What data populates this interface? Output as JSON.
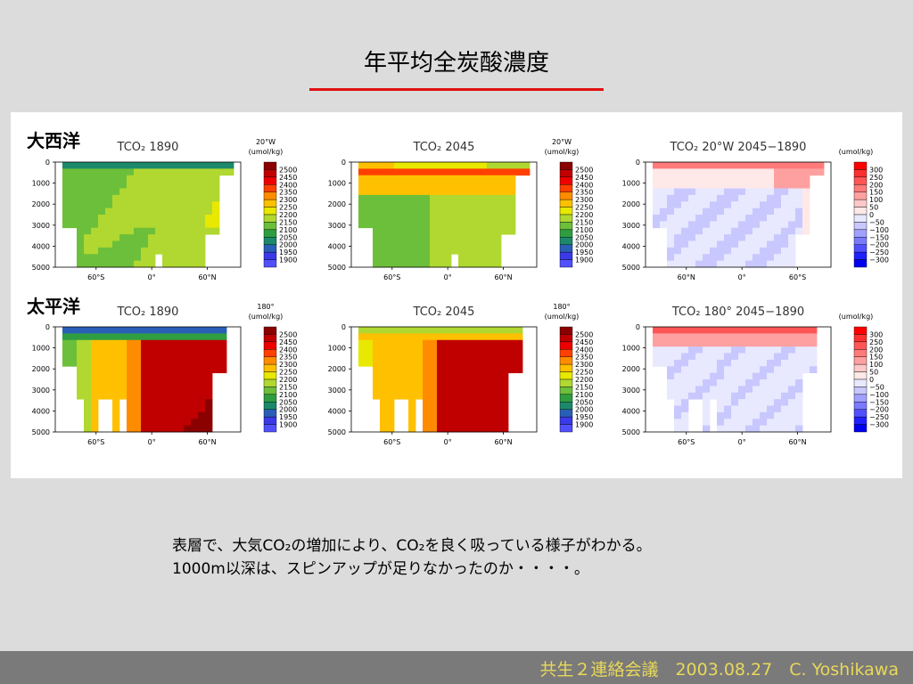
{
  "slide": {
    "title": "年平均全炭酸濃度",
    "caption_line1": "表層で、大気CO₂の増加により、CO₂を良く吸っている様子がわかる。",
    "caption_line2": "1000m以深は、スピンアップが足りなかったのか・・・・。",
    "footer": "共生２連絡会議　2003.08.27　C. Yoshikawa"
  },
  "sections": [
    {
      "label": "大西洋"
    },
    {
      "label": "太平洋"
    }
  ],
  "plots": [
    {
      "title": "TCO₂ 1890",
      "cb_title": "20°W",
      "cb_unit": "(umol/kg)",
      "xticks": [
        "60°S",
        "0°",
        "60°N"
      ],
      "scale": "abs",
      "kind": "atl1890"
    },
    {
      "title": "TCO₂ 2045",
      "cb_title": "20°W",
      "cb_unit": "(umol/kg)",
      "xticks": [
        "60°S",
        "0°",
        "60°N"
      ],
      "scale": "abs",
      "kind": "atl2045"
    },
    {
      "title": "TCO₂ 20°W 2045−1890",
      "cb_title": "",
      "cb_unit": "(umol/kg)",
      "xticks": [
        "60°N",
        "0°",
        "60°S"
      ],
      "scale": "diff",
      "kind": "atldiff"
    },
    {
      "title": "TCO₂ 1890",
      "cb_title": "180°",
      "cb_unit": "(umol/kg)",
      "xticks": [
        "60°S",
        "0°",
        "60°N"
      ],
      "scale": "abs",
      "kind": "pac1890"
    },
    {
      "title": "TCO₂ 2045",
      "cb_title": "180°",
      "cb_unit": "(umol/kg)",
      "xticks": [
        "60°S",
        "0°",
        "60°N"
      ],
      "scale": "abs",
      "kind": "pac2045"
    },
    {
      "title": "TCO₂ 180° 2045−1890",
      "cb_title": "",
      "cb_unit": "(umol/kg)",
      "xticks": [
        "60°S",
        "0°",
        "60°N"
      ],
      "scale": "diff",
      "kind": "pacdiff"
    }
  ],
  "yticks": [
    "0",
    "1000",
    "2000",
    "3000",
    "4000",
    "5000"
  ],
  "scales": {
    "abs": {
      "labels": [
        "2500",
        "2450",
        "2400",
        "2350",
        "2300",
        "2250",
        "2200",
        "2150",
        "2100",
        "2050",
        "2000",
        "1950",
        "1900"
      ],
      "colors": [
        "#8b0000",
        "#c00000",
        "#ee0000",
        "#ff4000",
        "#ff8c00",
        "#ffc000",
        "#e8e800",
        "#b0d830",
        "#6cbf3a",
        "#2e9e40",
        "#1c8a6a",
        "#2a5fb8",
        "#3a3ae8",
        "#5050ff"
      ]
    },
    "diff": {
      "labels": [
        "300",
        "250",
        "200",
        "150",
        "100",
        "50",
        "0",
        "−50",
        "−100",
        "−150",
        "−200",
        "−250",
        "−300"
      ],
      "colors": [
        "#ff0000",
        "#ff3030",
        "#ff5555",
        "#ff7a7a",
        "#ffa0a0",
        "#ffc8c8",
        "#ffe8e8",
        "#e8e8ff",
        "#c8c8ff",
        "#a0a0ff",
        "#7a7aff",
        "#5050ff",
        "#2020ff",
        "#0000ee"
      ]
    }
  }
}
